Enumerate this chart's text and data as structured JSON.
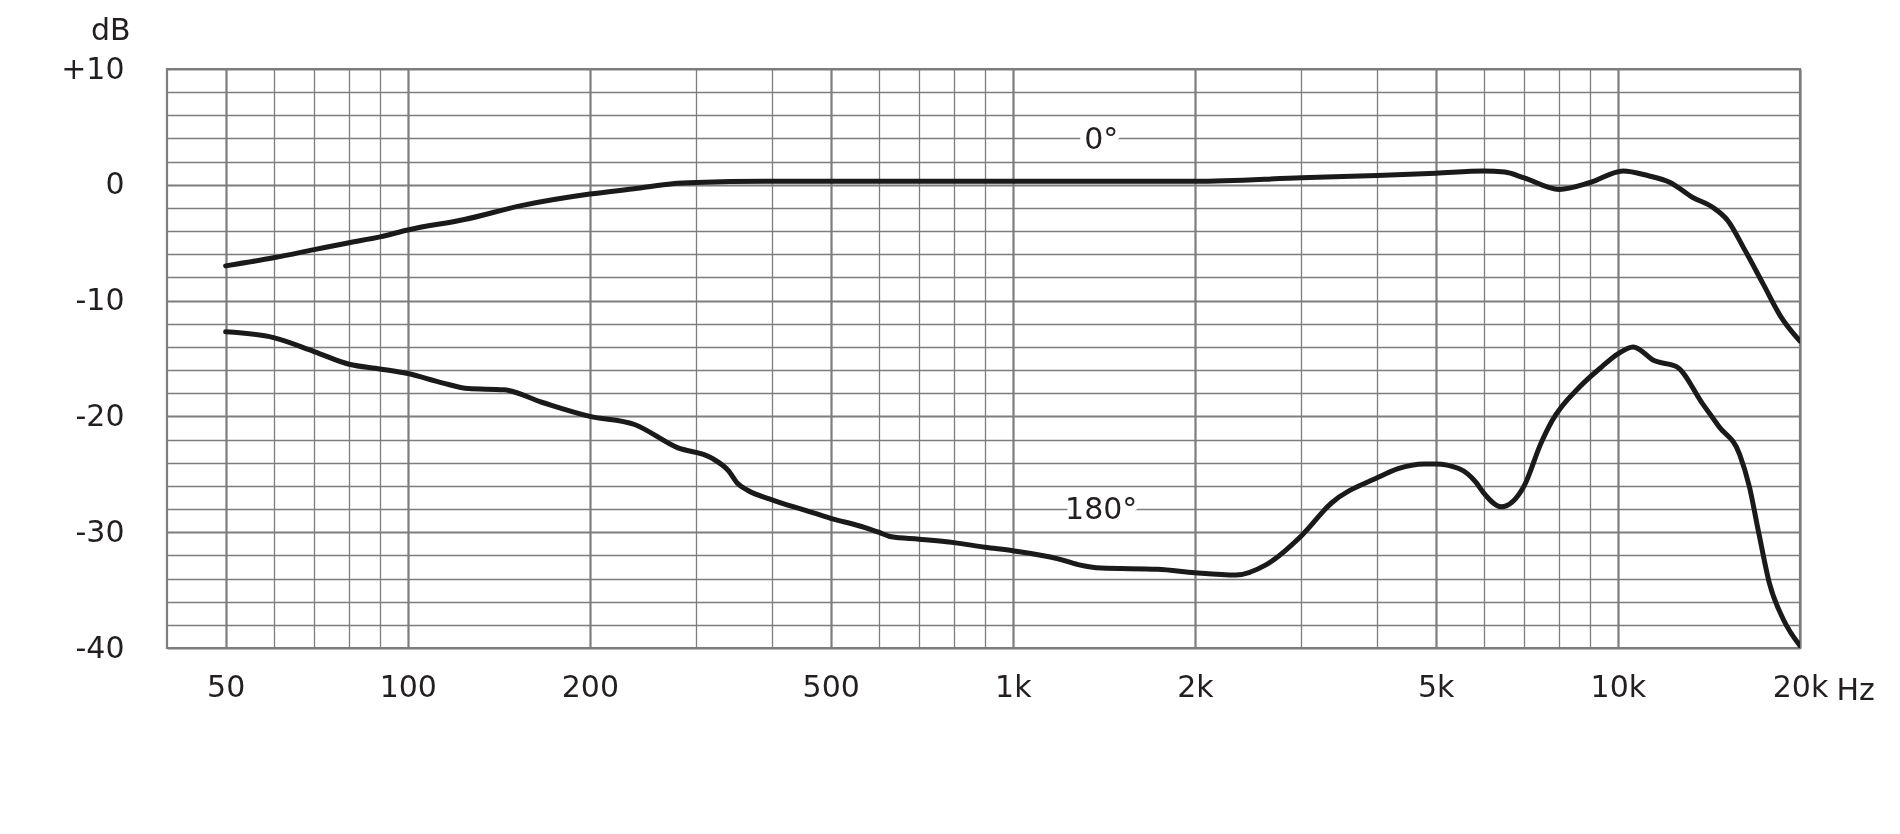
{
  "chart_data": {
    "type": "line",
    "xlabel": "Hz",
    "ylabel": "dB",
    "log": "x",
    "grid": true,
    "xlim": [
      40,
      20000
    ],
    "ylim": [
      -40,
      10
    ],
    "xticks": [
      50,
      {
        "value": 60,
        "label": null
      },
      {
        "value": 70,
        "label": null
      },
      {
        "value": 80,
        "label": null
      },
      {
        "value": 90,
        "label": null
      },
      100,
      200,
      {
        "value": 300,
        "label": null
      },
      {
        "value": 400,
        "label": null
      },
      500,
      {
        "value": 600,
        "label": null
      },
      {
        "value": 700,
        "label": null
      },
      {
        "value": 800,
        "label": null
      },
      {
        "value": 900,
        "label": null
      },
      {
        "value": 1000,
        "label": "1k"
      },
      {
        "value": 2000,
        "label": "2k"
      },
      {
        "value": 3000,
        "label": null
      },
      {
        "value": 4000,
        "label": null
      },
      {
        "value": 5000,
        "label": "5k"
      },
      {
        "value": 6000,
        "label": null
      },
      {
        "value": 7000,
        "label": null
      },
      {
        "value": 8000,
        "label": null
      },
      {
        "value": 9000,
        "label": null
      },
      {
        "value": 10000,
        "label": "10k"
      },
      {
        "value": 20000,
        "label": "20k"
      }
    ],
    "yticks": [
      {
        "value": 10,
        "label": "+10"
      },
      {
        "value": 8,
        "label": null
      },
      {
        "value": 6,
        "label": null
      },
      {
        "value": 4,
        "label": null
      },
      {
        "value": 2,
        "label": null
      },
      0,
      {
        "value": -2,
        "label": null
      },
      {
        "value": -4,
        "label": null
      },
      {
        "value": -6,
        "label": null
      },
      {
        "value": -8,
        "label": null
      },
      -10,
      {
        "value": -12,
        "label": null
      },
      {
        "value": -14,
        "label": null
      },
      {
        "value": -16,
        "label": null
      },
      {
        "value": -18,
        "label": null
      },
      -20,
      {
        "value": -22,
        "label": null
      },
      {
        "value": -24,
        "label": null
      },
      {
        "value": -26,
        "label": null
      },
      {
        "value": -28,
        "label": null
      },
      -30,
      {
        "value": -32,
        "label": null
      },
      {
        "value": -34,
        "label": null
      },
      {
        "value": -36,
        "label": null
      },
      {
        "value": -38,
        "label": null
      },
      -40
    ],
    "series": [
      {
        "name": "0°",
        "color": "#1a1a1a",
        "x": [
          50,
          60,
          70,
          80,
          90,
          100,
          124,
          154,
          200,
          240,
          274,
          300,
          400,
          1000,
          1400,
          2000,
          3000,
          4000,
          5000,
          6000,
          6500,
          7000,
          8000,
          9000,
          10200,
          11200,
          12200,
          13300,
          14300,
          15200,
          16200,
          17400,
          18600,
          20000
        ],
        "values": [
          -7.0,
          -6.3,
          -5.6,
          -5.0,
          -4.5,
          -3.9,
          -3.0,
          -1.8,
          -0.8,
          -0.3,
          0.1,
          0.2,
          0.3,
          0.3,
          0.3,
          0.3,
          0.6,
          0.8,
          1.0,
          1.2,
          1.1,
          0.6,
          -0.4,
          0.2,
          1.2,
          0.8,
          0.2,
          -1.1,
          -1.9,
          -3.1,
          -5.6,
          -8.6,
          -11.4,
          -13.5
        ]
      },
      {
        "name": "180°",
        "color": "#1a1a1a",
        "x": [
          50,
          60,
          70,
          80,
          90,
          100,
          114,
          126,
          144,
          167,
          200,
          237,
          279,
          318,
          339,
          351,
          365,
          400,
          453,
          500,
          570,
          600,
          630,
          700,
          800,
          900,
          1000,
          1188,
          1282,
          1400,
          1736,
          2000,
          2337,
          2624,
          3000,
          3359,
          4000,
          4333,
          4785,
          5000,
          5458,
          5829,
          6000,
          6416,
          7000,
          7466,
          7781,
          8666,
          9415,
          10000,
          10600,
          11500,
          12500,
          13800,
          14700,
          15900,
          16500,
          17100,
          17800,
          18800,
          20000
        ],
        "values": [
          -12.7,
          -13.2,
          -14.4,
          -15.5,
          -15.9,
          -16.3,
          -17.1,
          -17.6,
          -17.7,
          -18.8,
          -20.0,
          -20.7,
          -22.7,
          -23.6,
          -24.7,
          -25.8,
          -26.4,
          -27.2,
          -28.1,
          -28.8,
          -29.6,
          -30.0,
          -30.4,
          -30.6,
          -30.9,
          -31.3,
          -31.6,
          -32.3,
          -32.8,
          -33.1,
          -33.2,
          -33.5,
          -33.7,
          -32.8,
          -30.3,
          -27.5,
          -25.3,
          -24.5,
          -24.1,
          -24.1,
          -24.5,
          -25.7,
          -26.6,
          -27.8,
          -26.0,
          -22.3,
          -20.4,
          -17.4,
          -15.7,
          -14.6,
          -14.0,
          -15.2,
          -15.7,
          -18.9,
          -20.9,
          -23.3,
          -26.1,
          -30.1,
          -34.4,
          -37.6,
          -39.8
        ]
      }
    ]
  }
}
